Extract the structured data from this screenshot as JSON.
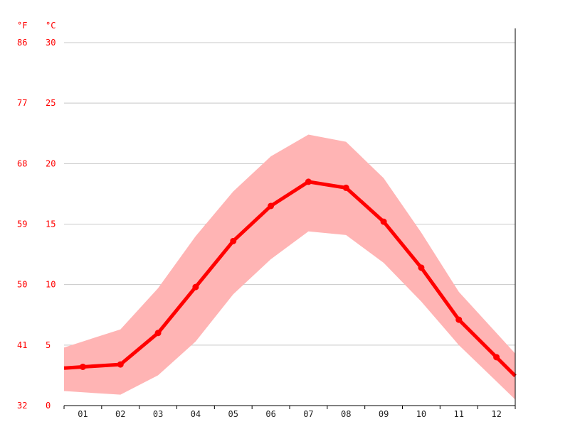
{
  "chart_data": {
    "type": "line",
    "title": "",
    "x_unit": "",
    "categories": [
      "01",
      "02",
      "03",
      "04",
      "05",
      "06",
      "07",
      "08",
      "09",
      "10",
      "11",
      "12"
    ],
    "y_units": {
      "fahrenheit": "°F",
      "celsius": "°C"
    },
    "ylim": [
      0,
      30
    ],
    "yticks_celsius": [
      "30",
      "25",
      "20",
      "15",
      "10",
      "5",
      "0"
    ],
    "yticks_fahrenheit": [
      "86",
      "77",
      "68",
      "59",
      "50",
      "41",
      "32"
    ],
    "grid": true,
    "series": [
      {
        "role": "mean",
        "values": [
          3.2,
          3.4,
          6.0,
          9.8,
          13.6,
          16.5,
          18.5,
          18.0,
          15.2,
          11.4,
          7.1,
          4.0
        ]
      },
      {
        "role": "band_upper",
        "values": [
          5.3,
          6.3,
          9.7,
          14.0,
          17.7,
          20.6,
          22.4,
          21.8,
          18.8,
          14.3,
          9.4,
          6.0
        ]
      },
      {
        "role": "band_lower",
        "values": [
          1.1,
          0.9,
          2.5,
          5.3,
          9.2,
          12.1,
          14.4,
          14.1,
          11.8,
          8.6,
          5.0,
          2.0
        ]
      }
    ],
    "colors": {
      "line": "#ff0000",
      "band": "#ffb4b4",
      "grid": "#c8c8c8",
      "axis": "#000000",
      "ytick_text": "#ff0000",
      "xtick_text": "#222222"
    }
  }
}
